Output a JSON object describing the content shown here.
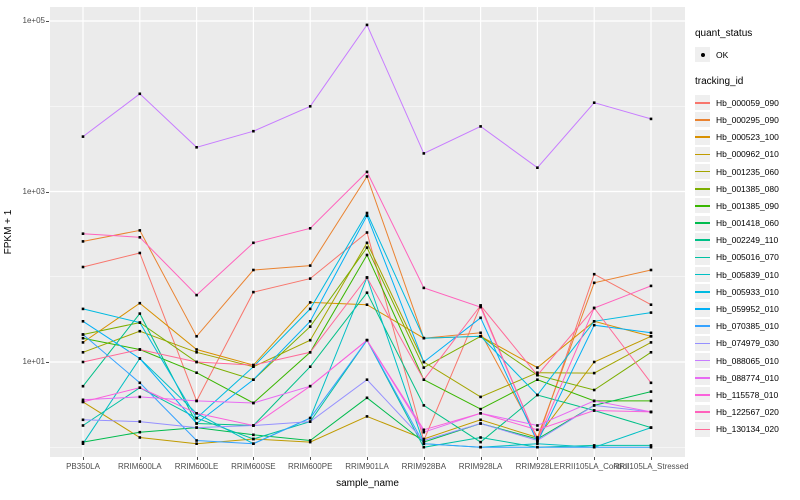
{
  "figure": {
    "background": "#FFFFFF",
    "panel_background": "#EBEBEB",
    "grid_color": "#FFFFFF",
    "tick_label_color": "#4D4D4D",
    "point_color": "#000000"
  },
  "axes": {
    "x_label": "sample_name",
    "y_label": "FPKM + 1",
    "y_tick_labels": [
      "1e+05",
      "1e+03",
      "1e+01"
    ],
    "y_tick_values": [
      100000,
      1000,
      10
    ],
    "y_minor_values": [
      10000,
      100,
      1
    ]
  },
  "legend": {
    "quant_status_title": "quant_status",
    "quant_status_ok_label": "OK",
    "tracking_title": "tracking_id"
  },
  "chart_data": {
    "type": "line",
    "title": "",
    "xlabel": "sample_name",
    "ylabel": "FPKM + 1",
    "y_scale": "log10",
    "ylim": [
      1,
      100000
    ],
    "grid": true,
    "legend_position": "right",
    "marker": {
      "shape": "small-black-point",
      "meaning": "quant_status OK"
    },
    "categories": [
      "PB350LA",
      "RRIM600LA",
      "RRIM600LE",
      "RRIM600SE",
      "RRIM600PE",
      "RRIM901LA",
      "RRIM928BA",
      "RRIM928LA",
      "RRIM928LE",
      "RRII105LA_Control",
      "RRII105LA_Stressed"
    ],
    "series": [
      {
        "name": "Hb_000059_090",
        "color": "#F8766D",
        "values": [
          130,
          190,
          3.5,
          66,
          95,
          330,
          1.2,
          46,
          1.2,
          107,
          47
        ]
      },
      {
        "name": "Hb_000295_090",
        "color": "#EA8331",
        "values": [
          260,
          350,
          20,
          120,
          135,
          1500,
          19,
          22,
          1.3,
          85,
          120
        ]
      },
      {
        "name": "Hb_000523_100",
        "color": "#D89000",
        "values": [
          17,
          49,
          14,
          9.2,
          50,
          47,
          19,
          20,
          8.6,
          30,
          20
        ]
      },
      {
        "name": "Hb_000962_010",
        "color": "#C09B00",
        "values": [
          3.4,
          1.3,
          1.1,
          1.25,
          1.15,
          2.3,
          1.25,
          2.1,
          1.3,
          10,
          20
        ]
      },
      {
        "name": "Hb_001235_060",
        "color": "#A3A500",
        "values": [
          13,
          23,
          13,
          8.8,
          18,
          250,
          10,
          3.9,
          7.5,
          7.4,
          17
        ]
      },
      {
        "name": "Hb_001385_080",
        "color": "#7CAE00",
        "values": [
          21,
          29,
          10,
          6.2,
          26,
          220,
          8.6,
          20,
          7.0,
          4.7,
          13
        ]
      },
      {
        "name": "Hb_001385_090",
        "color": "#39B600",
        "values": [
          19,
          14,
          7.5,
          3.3,
          13,
          180,
          6.2,
          2.8,
          6.2,
          3.5,
          3.5
        ]
      },
      {
        "name": "Hb_001418_060",
        "color": "#00BB4E",
        "values": [
          1.15,
          1.5,
          1.7,
          1.4,
          1.2,
          3.8,
          1.15,
          1.9,
          1.25,
          3.1,
          4.5
        ]
      },
      {
        "name": "Hb_002249_110",
        "color": "#00C087",
        "values": [
          5.2,
          37,
          1.9,
          1.8,
          8.8,
          65,
          3.1,
          1.15,
          4.1,
          2.7,
          1.7
        ]
      },
      {
        "name": "Hb_005016_070",
        "color": "#00C1A3",
        "values": [
          1.8,
          5.0,
          2.2,
          1.25,
          2.0,
          18,
          1.0,
          1.3,
          1.0,
          1.05,
          1.05
        ]
      },
      {
        "name": "Hb_005839_010",
        "color": "#00BFC4",
        "values": [
          1.1,
          11,
          2.5,
          1.1,
          2.2,
          98,
          1.1,
          1.0,
          1.1,
          1.0,
          1.7
        ]
      },
      {
        "name": "Hb_005933_010",
        "color": "#00BAE0",
        "values": [
          42,
          29,
          2.2,
          8.8,
          42,
          560,
          19,
          20,
          4.1,
          30,
          38
        ]
      },
      {
        "name": "Hb_059952_010",
        "color": "#00B0F6",
        "values": [
          30,
          11,
          1.9,
          6.2,
          30,
          520,
          10,
          33,
          1.15,
          27,
          22
        ]
      },
      {
        "name": "Hb_070385_010",
        "color": "#35A2FF",
        "values": [
          21,
          5.7,
          1.2,
          1.1,
          2.2,
          18,
          1.1,
          1.0,
          1.0,
          1.0,
          1.0
        ]
      },
      {
        "name": "Hb_074979_030",
        "color": "#9590FF",
        "values": [
          2.1,
          2.0,
          1.7,
          1.8,
          2.0,
          6.2,
          1.2,
          1.9,
          1.2,
          3.1,
          2.6
        ]
      },
      {
        "name": "Hb_088065_010",
        "color": "#C77CFF",
        "values": [
          4400,
          14000,
          3300,
          5100,
          10000,
          90000,
          2800,
          5800,
          1900,
          11000,
          7100
        ]
      },
      {
        "name": "Hb_088774_010",
        "color": "#E76BF3",
        "values": [
          3.6,
          3.9,
          3.5,
          3.3,
          5.2,
          18,
          1.5,
          2.5,
          1.8,
          3.5,
          2.6
        ]
      },
      {
        "name": "Hb_115578_010",
        "color": "#FA62DB",
        "values": [
          3.4,
          5.0,
          2.5,
          1.8,
          5.2,
          18,
          1.6,
          2.5,
          1.6,
          2.7,
          2.6
        ]
      },
      {
        "name": "Hb_122567_020",
        "color": "#FF62BC",
        "values": [
          320,
          290,
          61,
          250,
          370,
          1700,
          74,
          44,
          1.2,
          43,
          78
        ]
      },
      {
        "name": "Hb_130134_020",
        "color": "#FF6A98",
        "values": [
          10,
          14,
          10,
          9.2,
          13,
          98,
          6.2,
          46,
          7.0,
          43,
          5.7
        ]
      }
    ]
  }
}
